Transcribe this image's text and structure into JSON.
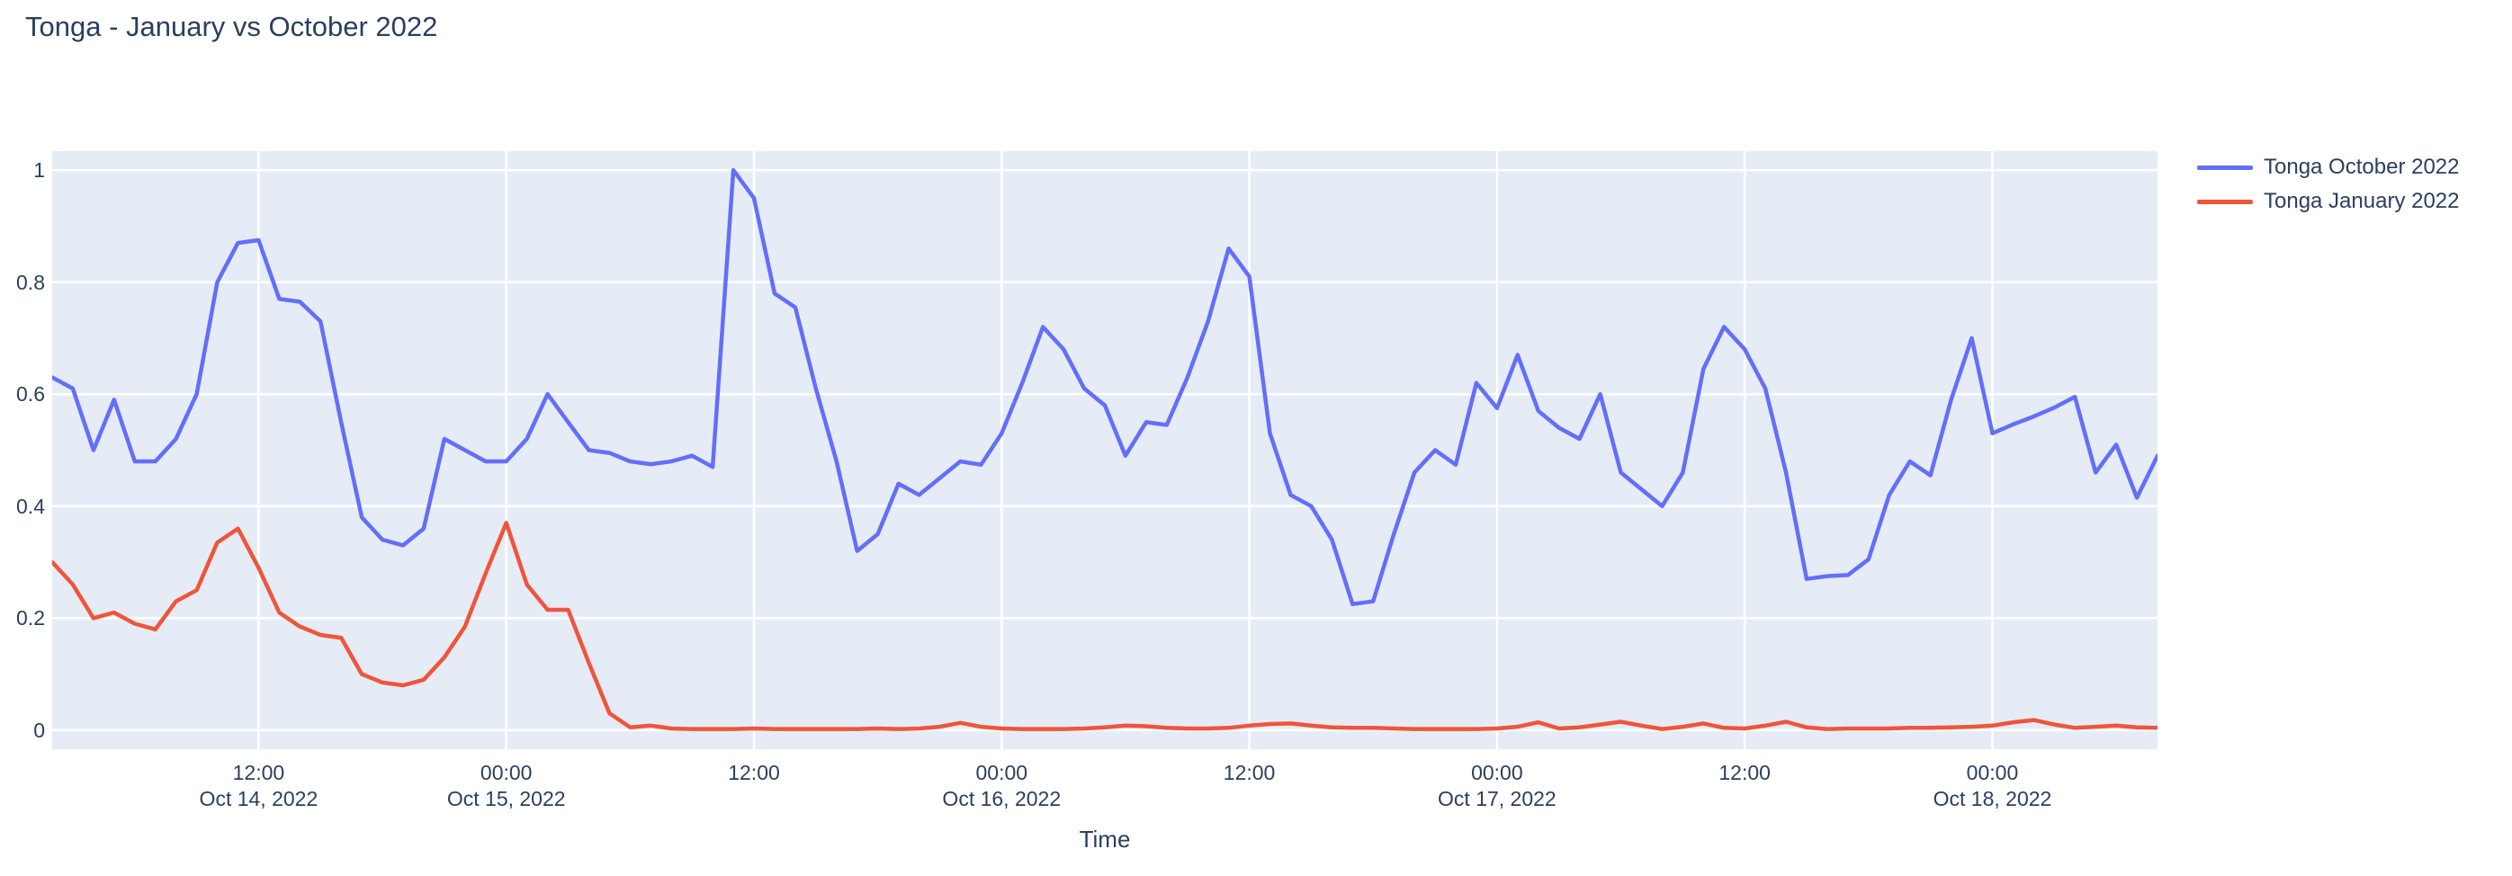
{
  "title": "Tonga - January vs October 2022",
  "chart_data": {
    "type": "line",
    "title": "Tonga - January vs October 2022",
    "xlabel": "Time",
    "ylabel": "",
    "plot_bg": "#E5ECF6",
    "grid": "on",
    "gridcolor": "#FFFFFF",
    "text_color": "#2a3f5f",
    "legend_position": "right-top",
    "x_start": "2022-10-14 02:00",
    "x_step_hours": 1,
    "x_range_hours": [
      2,
      104
    ],
    "ylim": [
      -0.034,
      1.034
    ],
    "y_ticks": [
      0,
      0.2,
      0.4,
      0.6,
      0.8,
      1
    ],
    "y_tick_labels": [
      "0",
      "0.2",
      "0.4",
      "0.6",
      "0.8",
      "1"
    ],
    "x_ticks": [
      {
        "hour": 12,
        "time": "12:00",
        "date": "Oct 14, 2022"
      },
      {
        "hour": 24,
        "time": "00:00",
        "date": "Oct 15, 2022"
      },
      {
        "hour": 36,
        "time": "12:00",
        "date": ""
      },
      {
        "hour": 48,
        "time": "00:00",
        "date": "Oct 16, 2022"
      },
      {
        "hour": 60,
        "time": "12:00",
        "date": ""
      },
      {
        "hour": 72,
        "time": "00:00",
        "date": "Oct 17, 2022"
      },
      {
        "hour": 84,
        "time": "12:00",
        "date": ""
      },
      {
        "hour": 96,
        "time": "00:00",
        "date": "Oct 18, 2022"
      }
    ],
    "series": [
      {
        "name": "Tonga October 2022",
        "color": "#636EFA",
        "values": [
          0.63,
          0.61,
          0.5,
          0.59,
          0.48,
          0.48,
          0.52,
          0.6,
          0.8,
          0.87,
          0.875,
          0.77,
          0.765,
          0.73,
          0.55,
          0.38,
          0.34,
          0.33,
          0.36,
          0.52,
          0.5,
          0.48,
          0.48,
          0.52,
          0.6,
          0.55,
          0.5,
          0.495,
          0.48,
          0.475,
          0.48,
          0.49,
          0.47,
          1.0,
          0.95,
          0.78,
          0.755,
          0.61,
          0.48,
          0.32,
          0.35,
          0.44,
          0.42,
          0.45,
          0.48,
          0.474,
          0.53,
          0.62,
          0.72,
          0.68,
          0.61,
          0.58,
          0.49,
          0.55,
          0.545,
          0.63,
          0.73,
          0.86,
          0.81,
          0.53,
          0.42,
          0.4,
          0.34,
          0.225,
          0.23,
          0.35,
          0.46,
          0.5,
          0.474,
          0.62,
          0.575,
          0.67,
          0.57,
          0.54,
          0.52,
          0.6,
          0.46,
          0.43,
          0.4,
          0.46,
          0.645,
          0.72,
          0.68,
          0.61,
          0.46,
          0.27,
          0.275,
          0.277,
          0.305,
          0.42,
          0.48,
          0.455,
          0.59,
          0.7,
          0.53,
          0.546,
          0.56,
          0.576,
          0.595,
          0.46,
          0.51,
          0.415,
          0.49
        ]
      },
      {
        "name": "Tonga January 2022",
        "color": "#EF553B",
        "values": [
          0.3,
          0.26,
          0.2,
          0.21,
          0.19,
          0.18,
          0.23,
          0.25,
          0.335,
          0.36,
          0.29,
          0.21,
          0.185,
          0.17,
          0.165,
          0.1,
          0.085,
          0.08,
          0.09,
          0.13,
          0.185,
          0.28,
          0.37,
          0.26,
          0.215,
          0.215,
          0.12,
          0.03,
          0.005,
          0.008,
          0.003,
          0.002,
          0.002,
          0.002,
          0.003,
          0.002,
          0.002,
          0.002,
          0.002,
          0.002,
          0.003,
          0.002,
          0.003,
          0.006,
          0.013,
          0.006,
          0.003,
          0.002,
          0.002,
          0.002,
          0.003,
          0.005,
          0.008,
          0.007,
          0.004,
          0.003,
          0.003,
          0.004,
          0.008,
          0.011,
          0.012,
          0.008,
          0.005,
          0.004,
          0.004,
          0.003,
          0.002,
          0.002,
          0.002,
          0.002,
          0.003,
          0.006,
          0.014,
          0.003,
          0.005,
          0.01,
          0.015,
          0.008,
          0.002,
          0.006,
          0.012,
          0.004,
          0.003,
          0.008,
          0.015,
          0.005,
          0.002,
          0.003,
          0.003,
          0.003,
          0.004,
          0.004,
          0.005,
          0.006,
          0.008,
          0.014,
          0.018,
          0.01,
          0.004,
          0.006,
          0.008,
          0.005,
          0.004
        ]
      }
    ]
  }
}
